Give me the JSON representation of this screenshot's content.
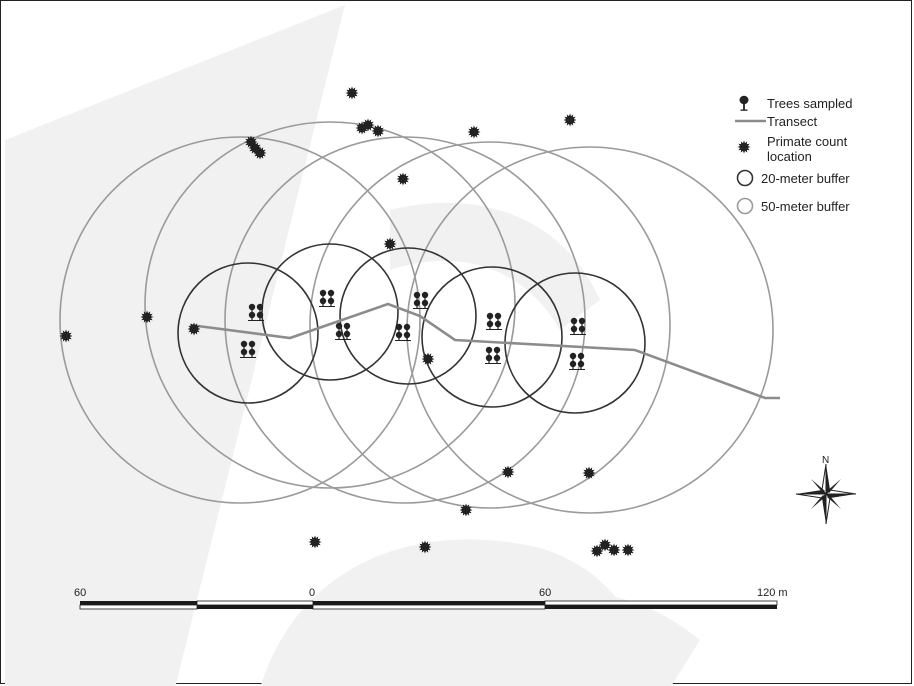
{
  "legend": {
    "trees_label": "Trees sampled",
    "transect_label": "Transect",
    "primate_label_line1": "Primate count",
    "primate_label_line2": "location",
    "buffer20_label": "20-meter buffer",
    "buffer50_label": "50-meter buffer"
  },
  "north_label": "N",
  "scale_bar": {
    "labels": [
      "60",
      "0",
      "60",
      "120 m"
    ]
  },
  "colors": {
    "buffer20": "#333333",
    "buffer50": "#999999",
    "transect": "#8c8c8c",
    "marker": "#222222",
    "watermark": "#f0f0f0"
  },
  "icons": {
    "tree": "tree-icon",
    "primate": "star-burst-icon",
    "compass": "compass-rose-icon"
  }
}
